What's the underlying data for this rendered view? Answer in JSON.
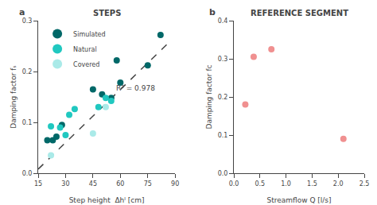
{
  "chart_data": [
    {
      "type": "scatter",
      "title": "STEPS",
      "xlabel": "Step height  Δhᴵ [cm]",
      "ylabel": "Damping factor fₛ",
      "xlim": [
        15,
        90
      ],
      "ylim": [
        0,
        0.3
      ],
      "xticks": [
        15,
        30,
        45,
        60,
        75,
        90
      ],
      "yticks": [
        {
          "value": 0,
          "label": "0.0"
        },
        0.1,
        0.2,
        0.3
      ],
      "grid": false,
      "legend": "upper left",
      "annotations": [
        "a",
        "R² = 0.978"
      ],
      "series": [
        {
          "name": "Simulated",
          "type": "scatter",
          "marker": "circle",
          "color": "#006868",
          "x": [
            20,
            23,
            25,
            28,
            45,
            50,
            55,
            58,
            60,
            75,
            82
          ],
          "values": [
            0.065,
            0.065,
            0.072,
            0.095,
            0.165,
            0.155,
            0.148,
            0.222,
            0.178,
            0.212,
            0.272
          ]
        },
        {
          "name": "Natural",
          "type": "scatter",
          "marker": "circle",
          "color": "#20c8c0",
          "x": [
            22,
            27,
            30,
            32,
            35,
            48,
            52,
            55
          ],
          "values": [
            0.092,
            0.09,
            0.075,
            0.115,
            0.126,
            0.13,
            0.148,
            0.142
          ]
        },
        {
          "name": "Covered",
          "type": "scatter",
          "marker": "circle",
          "color": "#aaeae8",
          "x": [
            22,
            45,
            52
          ],
          "values": [
            0.035,
            0.078,
            0.13
          ]
        },
        {
          "type": "line",
          "line_style": "dashed",
          "color": "#444444",
          "x": [
            15,
            88
          ],
          "values": [
            0.008,
            0.262
          ]
        }
      ]
    },
    {
      "type": "scatter",
      "title": "REFERENCE SEGMENT",
      "xlabel": "Streamflow Q [l/s]",
      "ylabel": "Damping factor fᴄ",
      "xlim": [
        0,
        2.5
      ],
      "ylim": [
        0,
        0.4
      ],
      "xticks": [
        {
          "value": 0,
          "label": "0.0"
        },
        0.5,
        {
          "value": 1.0,
          "label": "1.0"
        },
        1.5,
        {
          "value": 2.0,
          "label": "2.0"
        },
        2.5
      ],
      "yticks": [
        {
          "value": 0,
          "label": "0.0"
        },
        0.1,
        0.2,
        0.3,
        0.4
      ],
      "grid": false,
      "annotations": [
        "b"
      ],
      "marker": "circle",
      "color": "#f09090",
      "x": [
        0.22,
        0.38,
        0.72,
        2.1
      ],
      "values": [
        0.18,
        0.305,
        0.325,
        0.09
      ]
    }
  ]
}
